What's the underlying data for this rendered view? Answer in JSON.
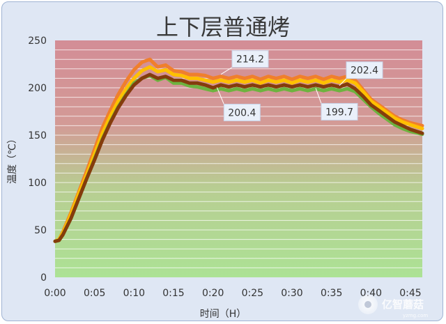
{
  "chart_data": {
    "type": "line",
    "title": "上下层普通烤",
    "xlabel": "时间（H）",
    "ylabel": "温度（℃）",
    "x_tick_labels": [
      "0:00",
      "0:05",
      "0:10",
      "0:15",
      "0:20",
      "0:25",
      "0:30",
      "0:35",
      "0:40",
      "0:45"
    ],
    "x_tick_minutes": [
      0,
      5,
      10,
      15,
      20,
      25,
      30,
      35,
      40,
      45
    ],
    "xlim_minutes": [
      0,
      46.5
    ],
    "ylim": [
      0,
      250
    ],
    "y_ticks": [
      0,
      50,
      100,
      150,
      200,
      250
    ],
    "background_bands": {
      "top_color": "#d38d96",
      "bottom_color": "#ace295",
      "lines_color": "#ffffff"
    },
    "x_minutes": [
      0,
      0.5,
      1,
      2,
      3,
      4,
      5,
      6,
      7,
      8,
      9,
      10,
      11,
      12,
      13,
      14,
      15,
      16,
      17,
      18,
      19,
      20,
      21,
      22,
      23,
      24,
      25,
      26,
      27,
      28,
      29,
      30,
      31,
      32,
      33,
      34,
      35,
      36,
      37,
      38,
      39,
      40,
      41,
      42,
      43,
      44,
      45,
      46.5
    ],
    "series": [
      {
        "color": "#f07f2c",
        "values": [
          38,
          40,
          48,
          68,
          90,
          112,
          135,
          158,
          176,
          193,
          207,
          219,
          227,
          230,
          222,
          224,
          218,
          217,
          214,
          214,
          213,
          210,
          212,
          210,
          212,
          210,
          212,
          209,
          212,
          210,
          212,
          209,
          212,
          210,
          212,
          209,
          212,
          210,
          212,
          208,
          198,
          188,
          182,
          176,
          170,
          166,
          163,
          160
        ]
      },
      {
        "color": "#ffc000",
        "values": [
          38,
          40,
          47,
          66,
          88,
          108,
          130,
          152,
          170,
          186,
          199,
          210,
          218,
          222,
          217,
          219,
          214,
          213,
          210,
          210,
          208,
          206,
          208,
          206,
          208,
          206,
          208,
          205,
          208,
          206,
          208,
          205,
          208,
          206,
          208,
          205,
          208,
          206,
          208,
          205,
          196,
          186,
          180,
          174,
          168,
          164,
          161,
          157
        ]
      },
      {
        "color": "#6db33f",
        "values": [
          38,
          39,
          45,
          62,
          83,
          104,
          125,
          146,
          164,
          180,
          193,
          205,
          210,
          213,
          208,
          211,
          205,
          205,
          202,
          201,
          199,
          197,
          199,
          197,
          199,
          197,
          199,
          197,
          199,
          197,
          199,
          197,
          199,
          197,
          199,
          197,
          199,
          197,
          199,
          196,
          188,
          180,
          173,
          167,
          161,
          157,
          154,
          151
        ]
      },
      {
        "color": "#843c0c",
        "values": [
          38,
          39,
          45,
          62,
          83,
          104,
          124,
          145,
          163,
          179,
          192,
          203,
          210,
          214,
          210,
          212,
          208,
          208,
          205,
          205,
          203,
          200,
          203,
          201,
          203,
          201,
          203,
          201,
          203,
          201,
          203,
          201,
          203,
          201,
          203,
          201,
          203,
          201,
          204,
          199,
          191,
          182,
          176,
          170,
          164,
          160,
          156,
          152
        ]
      }
    ],
    "annotations": [
      {
        "text": "214.2",
        "x_minute": 21,
        "y": 214.2
      },
      {
        "text": "200.4",
        "x_minute": 20.5,
        "y": 200.4
      },
      {
        "text": "199.7",
        "x_minute": 33,
        "y": 199.7
      },
      {
        "text": "202.4",
        "x_minute": 36,
        "y": 202.4
      }
    ]
  },
  "watermark": {
    "text": "亿智蘑菇",
    "sub": "yzmg.com"
  }
}
